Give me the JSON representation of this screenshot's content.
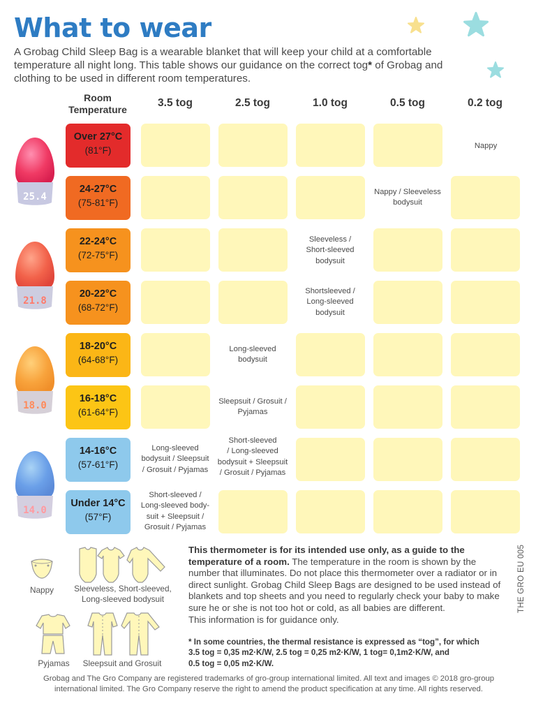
{
  "title": "What to wear",
  "intro": {
    "part1": "A Grobag Child Sleep Bag is a wearable blanket that will keep your child at a comfortable temperature all night long. This table shows our guidance on the correct tog",
    "asterisk": "*",
    "part2": " of Grobag and clothing to be used in different room temperatures."
  },
  "table": {
    "room_header_line1": "Room",
    "room_header_line2": "Temperature",
    "tog_headers": [
      "3.5 tog",
      "2.5 tog",
      "1.0 tog",
      "0.5 tog",
      "0.2 tog"
    ],
    "rows": [
      {
        "c": "Over 27°C",
        "f": "(81°F)",
        "color": "#e32b2b"
      },
      {
        "c": "24-27°C",
        "f": "(75-81°F)",
        "color": "#f06a22"
      },
      {
        "c": "22-24°C",
        "f": "(72-75°F)",
        "color": "#f6921e"
      },
      {
        "c": "20-22°C",
        "f": "(68-72°F)",
        "color": "#f6921e"
      },
      {
        "c": "18-20°C",
        "f": "(64-68°F)",
        "color": "#fbb616"
      },
      {
        "c": "16-18°C",
        "f": "(61-64°F)",
        "color": "#fcc515"
      },
      {
        "c": "14-16°C",
        "f": "(57-61°F)",
        "color": "#8ec9ec"
      },
      {
        "c": "Under 14°C",
        "f": "(57°F)",
        "color": "#8ec9ec"
      }
    ],
    "recommendations": {
      "r0": "Nappy",
      "r1": "Nappy / Sleeveless bodysuit",
      "r2_l1": "Sleeveless /",
      "r2_l2": "Short-sleeved",
      "r2_l3": "bodysuit",
      "r3_l1": "Shortsleeved /",
      "r3_l2": "Long-sleeved",
      "r3_l3": "bodysuit",
      "r4_l1": "Long-sleeved",
      "r4_l2": "bodysuit",
      "r5_l1": "Sleepsuit / Grosuit /",
      "r5_l2": "Pyjamas",
      "r6a_l1": "Long-sleeved",
      "r6a_l2": "bodysuit / Sleepsuit",
      "r6a_l3": "/ Grosuit / Pyjamas",
      "r6b_l1": "Short-sleeved",
      "r6b_l2": "/ Long-sleeved",
      "r6b_l3": "bodysuit + Sleepsuit",
      "r6b_l4": "/ Grosuit / Pyjamas",
      "r7_l1": "Short-sleeved /",
      "r7_l2": "Long-sleeved body-",
      "r7_l3": "suit + Sleepsuit /",
      "r7_l4": "Grosuit / Pyjamas"
    },
    "egg_displays": [
      "25.4",
      "21.8",
      "18.0",
      "14.0"
    ]
  },
  "clothing_legend": {
    "nappy": "Nappy",
    "bodysuit_l1": "Sleeveless, Short-sleeved,",
    "bodysuit_l2": "Long-sleeved bodysuit",
    "pyjamas": "Pyjamas",
    "sleepsuit": "Sleepsuit and Grosuit"
  },
  "notice": {
    "bold": "This thermometer is for its intended use only, as a guide to the temperature of a room.",
    "body": " The temperature in the room is shown by the number that illuminates. Do not place this thermometer over a radiator or in direct sunlight. Grobag Child Sleep Bags are designed to be used instead of blankets and top sheets and you need to regularly check your baby to make sure he or she is not too hot or cold, as all babies are different.",
    "guidance": "This information is for guidance only."
  },
  "footnote": {
    "line1": "* In some countries, the thermal resistance is expressed as “tog”, for which",
    "line2": "3.5 tog = 0,35 m2·K/W, 2.5 tog = 0,25 m2·K/W,  1 tog= 0,1m2·K/W, and",
    "line3": "0.5 tog = 0,05 m2·K/W."
  },
  "product_code": "THE GRO EU 005",
  "footer": {
    "line1": "Grobag and The Gro Company are registered trademarks of gro-group international limited. All text and images © 2018 gro-group",
    "line2": "international limited. The Gro Company reserve the right to amend the product specification at any time. All rights reserved."
  },
  "colors": {
    "title": "#2e7cc3",
    "cell": "#fff7ba",
    "star_yellow": "#f8e08e",
    "star_teal": "#9bdde0"
  }
}
